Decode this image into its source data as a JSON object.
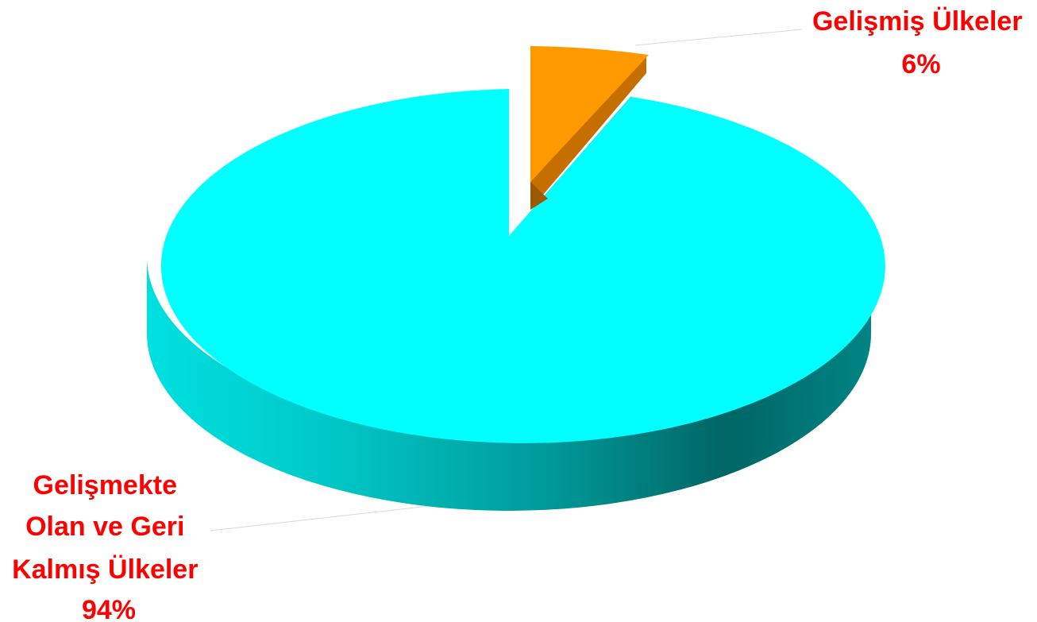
{
  "chart_data": {
    "type": "pie",
    "style": "3d-exploded",
    "series": [
      {
        "slices": [
          {
            "label_lines": [
              "Gelişmiş Ülkeler",
              "6%"
            ],
            "value": 6,
            "color": "#FF9900",
            "side_color": "#C46F00",
            "exploded": true
          },
          {
            "label_lines": [
              "Gelişmekte",
              "Olan ve Geri",
              "Kalmış Ülkeler",
              "94%"
            ],
            "value": 94,
            "color": "#00FFFF",
            "side_color": "#009999",
            "exploded": false
          }
        ]
      }
    ],
    "label_color": "#FF0000",
    "legend": "none"
  }
}
